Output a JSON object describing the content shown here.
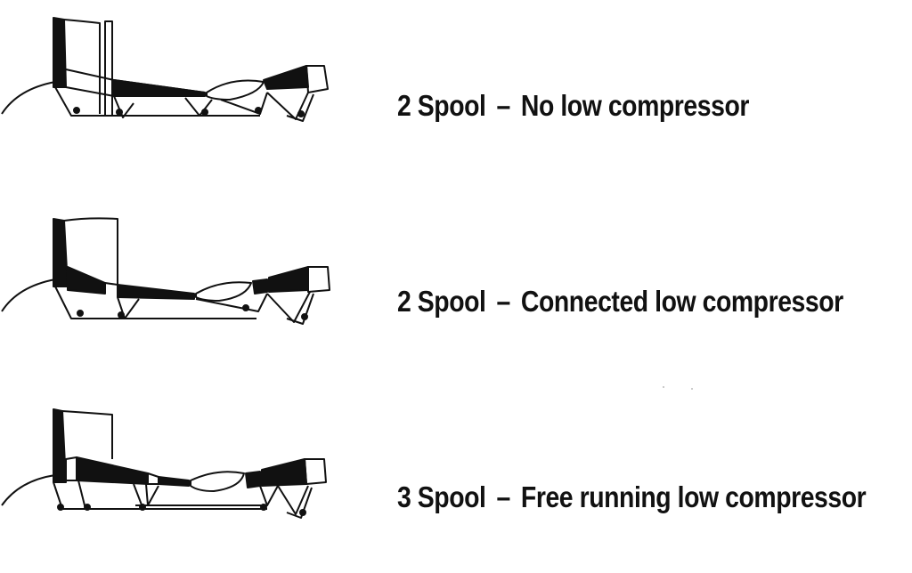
{
  "rows": [
    {
      "type": "2 Spool",
      "separator": "–",
      "description": "No low compressor"
    },
    {
      "type": "2 Spool",
      "separator": "–",
      "description": "Connected low compressor"
    },
    {
      "type": "3 Spool",
      "separator": "–",
      "description": "Free running low compressor"
    }
  ],
  "colors": {
    "ink": "#111111",
    "background": "#ffffff"
  }
}
